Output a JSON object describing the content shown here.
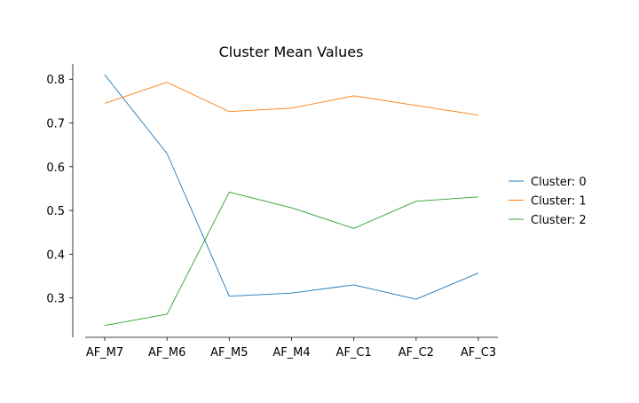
{
  "chart_data": {
    "type": "line",
    "title": "Cluster Mean Values",
    "xlabel": "",
    "ylabel": "",
    "categories": [
      "AF_M7",
      "AF_M6",
      "AF_M5",
      "AF_M4",
      "AF_C1",
      "AF_C2",
      "AF_C3"
    ],
    "ylim": [
      0.21,
      0.835
    ],
    "yticks": [
      0.3,
      0.4,
      0.5,
      0.6,
      0.7,
      0.8
    ],
    "ytick_labels": [
      "0.3",
      "0.4",
      "0.5",
      "0.6",
      "0.7",
      "0.8"
    ],
    "grid": false,
    "legend_position": "right",
    "series": [
      {
        "name": "Cluster: 0",
        "color": "#1f77b4",
        "values": [
          0.81,
          0.63,
          0.304,
          0.311,
          0.33,
          0.297,
          0.357
        ]
      },
      {
        "name": "Cluster: 1",
        "color": "#ff7f0e",
        "values": [
          0.745,
          0.793,
          0.726,
          0.734,
          0.762,
          0.74,
          0.718
        ]
      },
      {
        "name": "Cluster: 2",
        "color": "#2ca02c",
        "values": [
          0.237,
          0.263,
          0.542,
          0.506,
          0.459,
          0.521,
          0.531
        ]
      }
    ]
  }
}
